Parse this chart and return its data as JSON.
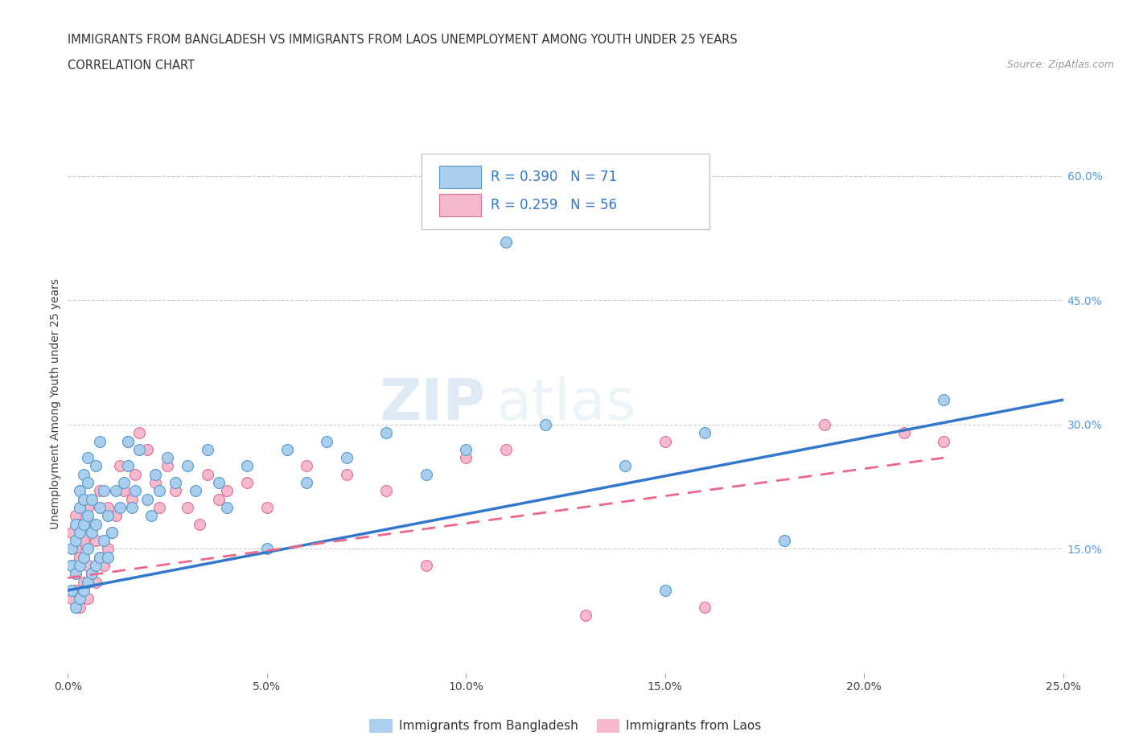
{
  "title_line1": "IMMIGRANTS FROM BANGLADESH VS IMMIGRANTS FROM LAOS UNEMPLOYMENT AMONG YOUTH UNDER 25 YEARS",
  "title_line2": "CORRELATION CHART",
  "source": "Source: ZipAtlas.com",
  "ylabel": "Unemployment Among Youth under 25 years",
  "xlim": [
    0.0,
    0.25
  ],
  "ylim": [
    0.0,
    0.65
  ],
  "xticks": [
    0.0,
    0.05,
    0.1,
    0.15,
    0.2,
    0.25
  ],
  "xtick_labels": [
    "0.0%",
    "5.0%",
    "10.0%",
    "15.0%",
    "20.0%",
    "25.0%"
  ],
  "yticks_right": [
    0.15,
    0.3,
    0.45,
    0.6
  ],
  "ytick_labels_right": [
    "15.0%",
    "30.0%",
    "45.0%",
    "60.0%"
  ],
  "grid_color": "#cccccc",
  "background_color": "#ffffff",
  "legend_r1": "R = 0.390",
  "legend_n1": "N = 71",
  "legend_r2": "R = 0.259",
  "legend_n2": "N = 56",
  "series1_color": "#aacfee",
  "series1_edge": "#5599cc",
  "series2_color": "#f5b8cc",
  "series2_edge": "#e07090",
  "trend1_color": "#3377cc",
  "trend2_color": "#ee6688",
  "label1": "Immigrants from Bangladesh",
  "label2": "Immigrants from Laos",
  "bangladesh_x": [
    0.001,
    0.001,
    0.001,
    0.002,
    0.002,
    0.002,
    0.002,
    0.003,
    0.003,
    0.003,
    0.003,
    0.003,
    0.004,
    0.004,
    0.004,
    0.004,
    0.004,
    0.005,
    0.005,
    0.005,
    0.005,
    0.005,
    0.006,
    0.006,
    0.006,
    0.007,
    0.007,
    0.007,
    0.008,
    0.008,
    0.008,
    0.009,
    0.009,
    0.01,
    0.01,
    0.011,
    0.012,
    0.013,
    0.014,
    0.015,
    0.015,
    0.016,
    0.017,
    0.018,
    0.02,
    0.021,
    0.022,
    0.023,
    0.025,
    0.027,
    0.03,
    0.032,
    0.035,
    0.038,
    0.04,
    0.045,
    0.05,
    0.055,
    0.06,
    0.065,
    0.07,
    0.08,
    0.09,
    0.1,
    0.11,
    0.12,
    0.14,
    0.15,
    0.16,
    0.18,
    0.22
  ],
  "bangladesh_y": [
    0.1,
    0.13,
    0.15,
    0.08,
    0.12,
    0.16,
    0.18,
    0.09,
    0.13,
    0.17,
    0.2,
    0.22,
    0.1,
    0.14,
    0.18,
    0.21,
    0.24,
    0.11,
    0.15,
    0.19,
    0.23,
    0.26,
    0.12,
    0.17,
    0.21,
    0.13,
    0.18,
    0.25,
    0.14,
    0.2,
    0.28,
    0.16,
    0.22,
    0.14,
    0.19,
    0.17,
    0.22,
    0.2,
    0.23,
    0.25,
    0.28,
    0.2,
    0.22,
    0.27,
    0.21,
    0.19,
    0.24,
    0.22,
    0.26,
    0.23,
    0.25,
    0.22,
    0.27,
    0.23,
    0.2,
    0.25,
    0.15,
    0.27,
    0.23,
    0.28,
    0.26,
    0.29,
    0.24,
    0.27,
    0.52,
    0.3,
    0.25,
    0.1,
    0.29,
    0.16,
    0.33
  ],
  "laos_x": [
    0.001,
    0.001,
    0.001,
    0.002,
    0.002,
    0.002,
    0.003,
    0.003,
    0.003,
    0.004,
    0.004,
    0.004,
    0.005,
    0.005,
    0.005,
    0.006,
    0.006,
    0.007,
    0.007,
    0.008,
    0.008,
    0.009,
    0.01,
    0.01,
    0.011,
    0.012,
    0.013,
    0.014,
    0.015,
    0.016,
    0.017,
    0.018,
    0.02,
    0.022,
    0.023,
    0.025,
    0.027,
    0.03,
    0.033,
    0.035,
    0.038,
    0.04,
    0.045,
    0.05,
    0.06,
    0.07,
    0.08,
    0.09,
    0.1,
    0.11,
    0.13,
    0.15,
    0.16,
    0.19,
    0.21,
    0.22
  ],
  "laos_y": [
    0.09,
    0.13,
    0.17,
    0.1,
    0.15,
    0.19,
    0.08,
    0.14,
    0.18,
    0.11,
    0.16,
    0.21,
    0.09,
    0.13,
    0.2,
    0.12,
    0.18,
    0.11,
    0.16,
    0.14,
    0.22,
    0.13,
    0.15,
    0.2,
    0.17,
    0.19,
    0.25,
    0.22,
    0.28,
    0.21,
    0.24,
    0.29,
    0.27,
    0.23,
    0.2,
    0.25,
    0.22,
    0.2,
    0.18,
    0.24,
    0.21,
    0.22,
    0.23,
    0.2,
    0.25,
    0.24,
    0.22,
    0.13,
    0.26,
    0.27,
    0.07,
    0.28,
    0.08,
    0.3,
    0.29,
    0.28
  ],
  "trend1_x": [
    0.0,
    0.25
  ],
  "trend1_y": [
    0.1,
    0.33
  ],
  "trend2_x": [
    0.0,
    0.22
  ],
  "trend2_y": [
    0.115,
    0.26
  ]
}
